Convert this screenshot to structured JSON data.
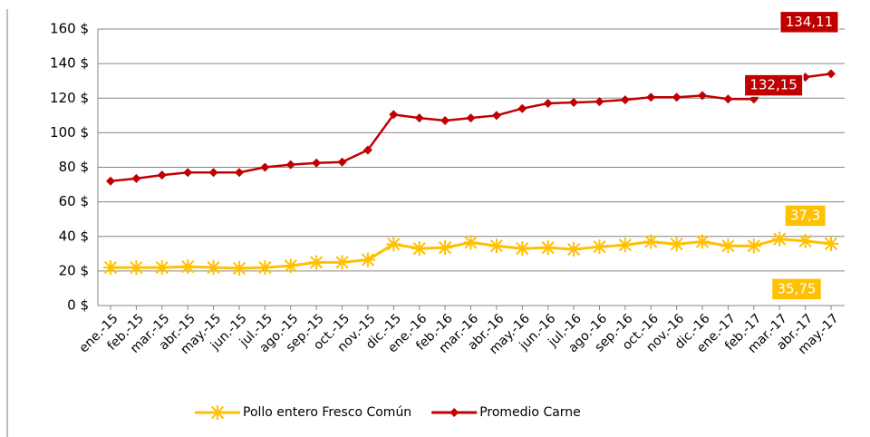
{
  "chart_data": {
    "type": "line",
    "categories": [
      "ene.-15",
      "feb.-15",
      "mar.-15",
      "abr.-15",
      "may.-15",
      "jun.-15",
      "jul.-15",
      "ago.-15",
      "sep.-15",
      "oct.-15",
      "nov.-15",
      "dic.-15",
      "ene.-16",
      "feb.-16",
      "mar.-16",
      "abr.-16",
      "may.-16",
      "jun.-16",
      "jul.-16",
      "ago.-16",
      "sep.-16",
      "oct.-16",
      "nov.-16",
      "dic.-16",
      "ene.-17",
      "feb.-17",
      "mar.-17",
      "abr.-17",
      "may.-17"
    ],
    "series": [
      {
        "name": "Pollo entero Fresco Común",
        "color": "#ffc000",
        "marker": "star",
        "values": [
          22,
          22,
          22,
          22.5,
          22,
          21.5,
          22,
          23,
          25,
          25,
          26.5,
          35.5,
          33,
          33.5,
          36.5,
          34.5,
          33,
          33.5,
          32.5,
          34,
          35,
          37,
          35.5,
          37,
          34.5,
          34.5,
          38.5,
          37.3,
          35.75
        ],
        "value_labels": [
          null,
          null,
          null,
          null,
          null,
          null,
          null,
          null,
          null,
          null,
          null,
          null,
          null,
          null,
          null,
          null,
          null,
          null,
          null,
          null,
          null,
          null,
          null,
          null,
          null,
          null,
          null,
          "37,3",
          "35,75"
        ]
      },
      {
        "name": "Promedio Carne",
        "color": "#c00000",
        "marker": "diamond",
        "values": [
          72,
          73.5,
          75.5,
          77,
          77,
          77,
          80,
          81.5,
          82.5,
          83,
          90,
          110.5,
          108.5,
          107,
          108.5,
          110,
          114,
          117,
          117.5,
          118,
          119,
          120.5,
          120.5,
          121.5,
          119.5,
          119.5,
          129,
          132.15,
          134.11
        ],
        "value_labels": [
          null,
          null,
          null,
          null,
          null,
          null,
          null,
          null,
          null,
          null,
          null,
          null,
          null,
          null,
          null,
          null,
          null,
          null,
          null,
          null,
          null,
          null,
          null,
          null,
          null,
          null,
          null,
          "132,15",
          "134,11"
        ]
      }
    ],
    "ylim": [
      0,
      160
    ],
    "yticks": [
      {
        "value": 0,
        "label": "0 $"
      },
      {
        "value": 20,
        "label": "20 $"
      },
      {
        "value": 40,
        "label": "40 $"
      },
      {
        "value": 60,
        "label": "60 $"
      },
      {
        "value": 80,
        "label": "80 $"
      },
      {
        "value": 100,
        "label": "100 $"
      },
      {
        "value": 120,
        "label": "120 $"
      },
      {
        "value": 140,
        "label": "140 $"
      },
      {
        "value": 160,
        "label": "160 $"
      }
    ],
    "grid": true,
    "legend": "bottom"
  }
}
